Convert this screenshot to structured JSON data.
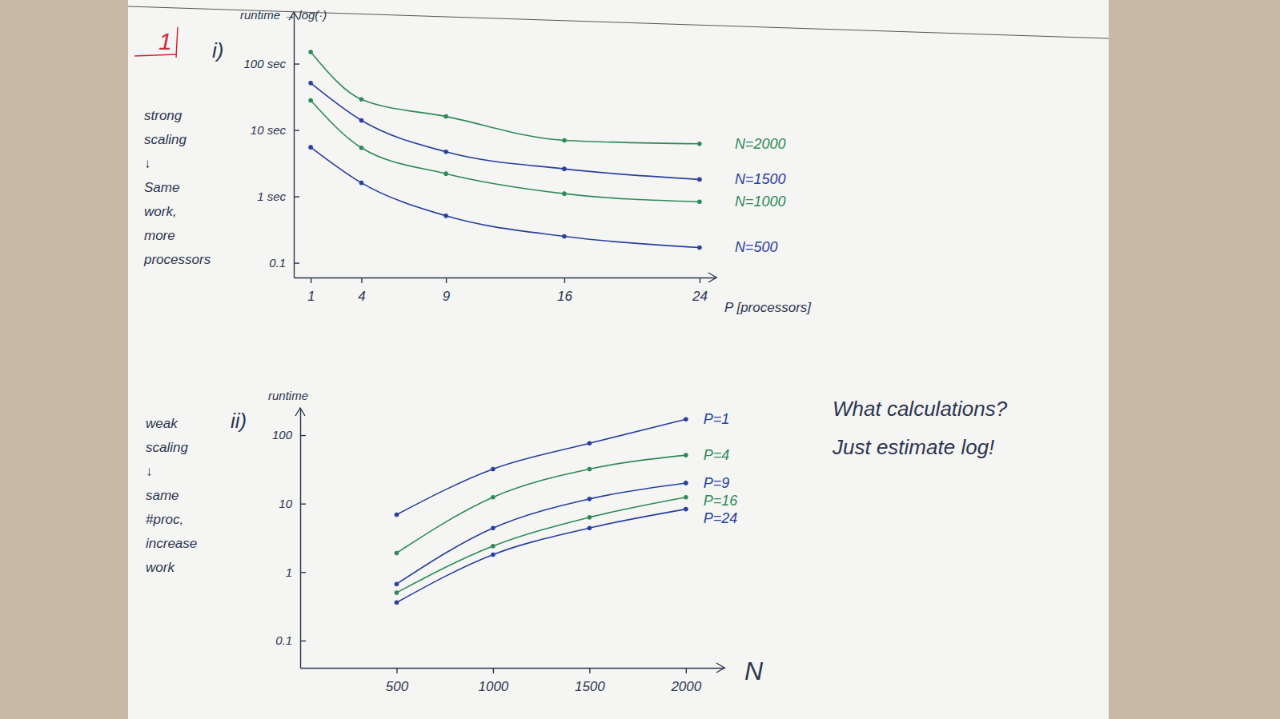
{
  "chart_data": [
    {
      "type": "line",
      "title": "i)",
      "annotations": [
        {
          "text": "1"
        },
        {
          "text": "strong\nscaling\n↓\nSame\nwork,\nmore\nprocessors"
        }
      ],
      "x_label": "P [processors]",
      "y_label": "runtime → log(·)",
      "x": [
        1,
        4,
        9,
        16,
        24
      ],
      "series": [
        {
          "name": "N=2000",
          "color": "#2f8a5a",
          "values": [
            150,
            29,
            16,
            7,
            6.2
          ]
        },
        {
          "name": "N=1500",
          "color": "#2a3f9e",
          "values": [
            51,
            14,
            4.7,
            2.6,
            1.8
          ]
        },
        {
          "name": "N=1000",
          "color": "#2f8a5a",
          "values": [
            28,
            5.4,
            2.2,
            1.1,
            0.83
          ]
        },
        {
          "name": "N=500",
          "color": "#2a3f9e",
          "values": [
            5.5,
            1.6,
            0.51,
            0.25,
            0.17
          ]
        }
      ],
      "xlim": [
        0,
        25
      ],
      "xticks": [
        1,
        4,
        9,
        16,
        24
      ],
      "ylim": [
        0.06,
        600
      ],
      "yticks": [
        0.1,
        {
          "value": 1,
          "label": "1 sec"
        },
        {
          "value": 10,
          "label": "10 sec"
        },
        {
          "value": 100,
          "label": "100 sec"
        }
      ],
      "log": "y",
      "grid": false,
      "marker": "circle",
      "line_style": "solid"
    },
    {
      "type": "line",
      "title": "ii)",
      "annotations": [
        {
          "text": "weak\nscaling\n↓\nsame\n#proc,\nincrease\nwork"
        },
        {
          "text": "What calculations?\nJust estimate log!"
        }
      ],
      "x_label": "N",
      "y_label": "runtime",
      "x": [
        500,
        1000,
        1500,
        2000
      ],
      "series": [
        {
          "name": "P=1",
          "color": "#2a3f9e",
          "values": [
            6.9,
            32,
            76,
            170
          ]
        },
        {
          "name": "P=4",
          "color": "#2f8a5a",
          "values": [
            1.9,
            12.4,
            32,
            51
          ]
        },
        {
          "name": "P=9",
          "color": "#2a3f9e",
          "values": [
            0.67,
            4.4,
            11.7,
            20
          ]
        },
        {
          "name": "P=16",
          "color": "#2f8a5a",
          "values": [
            0.5,
            2.4,
            6.3,
            12.4
          ]
        },
        {
          "name": "P=24",
          "color": "#2a3f9e",
          "values": [
            0.36,
            1.8,
            4.4,
            8.3
          ]
        }
      ],
      "xlim": [
        0,
        2200
      ],
      "xticks": [
        500,
        1000,
        1500,
        2000
      ],
      "ylim": [
        0.04,
        250
      ],
      "yticks": [
        0.1,
        1,
        10,
        100
      ],
      "log": "y",
      "grid": false,
      "marker": "circle",
      "line_style": "solid"
    }
  ]
}
